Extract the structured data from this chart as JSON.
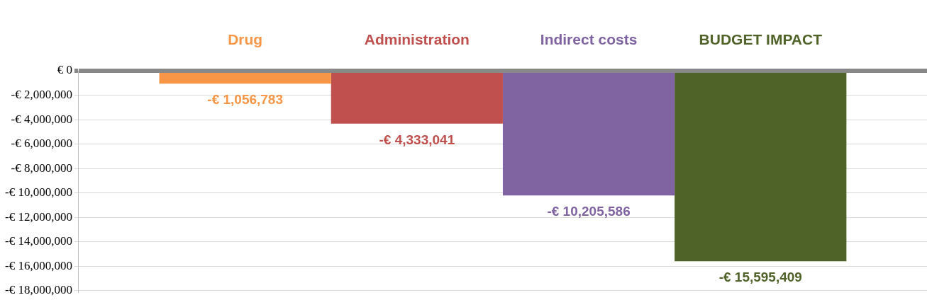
{
  "chart_data": {
    "type": "bar",
    "categories": [
      null
    ],
    "series": [
      {
        "name": "Drug",
        "color": "#f79646",
        "values": [
          -1056783
        ],
        "value_labels": [
          "-€ 1,056,783"
        ]
      },
      {
        "name": "Administration",
        "color": "#c0504d",
        "values": [
          -4333041
        ],
        "value_labels": [
          "-€ 4,333,041"
        ]
      },
      {
        "name": "Indirect costs",
        "color": "#8064a2",
        "values": [
          -10205586
        ],
        "value_labels": [
          "-€ 10,205,586"
        ]
      },
      {
        "name": "BUDGET IMPACT",
        "color": "#4f6228",
        "values": [
          -15595409
        ],
        "value_labels": [
          "-€ 15,595,409"
        ]
      }
    ],
    "ylim": [
      -18000000,
      0
    ],
    "yticks": [
      {
        "value": 0,
        "label": "€ 0"
      },
      {
        "value": -2000000,
        "label": "-€ 2,000,000"
      },
      {
        "value": -4000000,
        "label": "-€ 4,000,000"
      },
      {
        "value": -6000000,
        "label": "-€ 6,000,000"
      },
      {
        "value": -8000000,
        "label": "-€ 8,000,000"
      },
      {
        "value": -10000000,
        "label": "-€ 10,000,000"
      },
      {
        "value": -12000000,
        "label": "-€ 12,000,000"
      },
      {
        "value": -14000000,
        "label": "-€ 14,000,000"
      },
      {
        "value": -16000000,
        "label": "-€ 16,000,000"
      },
      {
        "value": -18000000,
        "label": "-€ 18,000,000"
      }
    ],
    "grid": "y",
    "legend": false
  }
}
